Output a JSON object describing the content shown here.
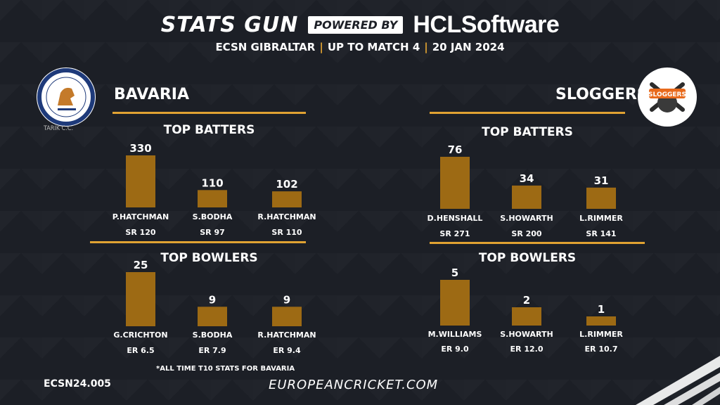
{
  "header": {
    "brand": "STATS GUN",
    "powered_by": "POWERED BY",
    "sponsor_prefix": "HCL",
    "sponsor_suffix": "Software",
    "subtitle_parts": [
      "ECSN  GIBRALTAR",
      "UP TO MATCH 4",
      "20 JAN 2024"
    ]
  },
  "teams": {
    "left": {
      "name": "BAVARIA",
      "logo_text_top": "BAVARIA CCC",
      "logo_text_bottom": "TOTUS TUUS",
      "logo_caption": "TARIK C.C."
    },
    "right": {
      "name": "SLOGGERS",
      "logo_text": "SLOGGERS"
    }
  },
  "colors": {
    "bar": "#9d6a14",
    "accent": "#e0a232",
    "background": "#1c1f26"
  },
  "chart_data": [
    {
      "type": "bar",
      "team": "BAVARIA",
      "title": "TOP BATTERS",
      "categories": [
        "P.HATCHMAN",
        "S.BODHA",
        "R.HATCHMAN"
      ],
      "values": [
        330,
        110,
        102
      ],
      "sublabels": [
        "SR 120",
        "SR 97",
        "SR 110"
      ]
    },
    {
      "type": "bar",
      "team": "BAVARIA",
      "title": "TOP BOWLERS",
      "categories": [
        "G.CRICHTON",
        "S.BODHA",
        "R.HATCHMAN"
      ],
      "values": [
        25,
        9,
        9
      ],
      "sublabels": [
        "ER 6.5",
        "ER 7.9",
        "ER 9.4"
      ]
    },
    {
      "type": "bar",
      "team": "SLOGGERS",
      "title": "TOP BATTERS",
      "categories": [
        "D.HENSHALL",
        "S.HOWARTH",
        "L.RIMMER"
      ],
      "values": [
        76,
        34,
        31
      ],
      "sublabels": [
        "SR 271",
        "SR 200",
        "SR 141"
      ]
    },
    {
      "type": "bar",
      "team": "SLOGGERS",
      "title": "TOP BOWLERS",
      "categories": [
        "M.WILLIAMS",
        "S.HOWARTH",
        "L.RIMMER"
      ],
      "values": [
        5,
        2,
        1
      ],
      "sublabels": [
        "ER 9.0",
        "ER 12.0",
        "ER 10.7"
      ]
    }
  ],
  "footer": {
    "note": "*ALL TIME T10 STATS  FOR BAVARIA",
    "id": "ECSN24.005",
    "url": "EUROPEANCRICKET.COM"
  }
}
